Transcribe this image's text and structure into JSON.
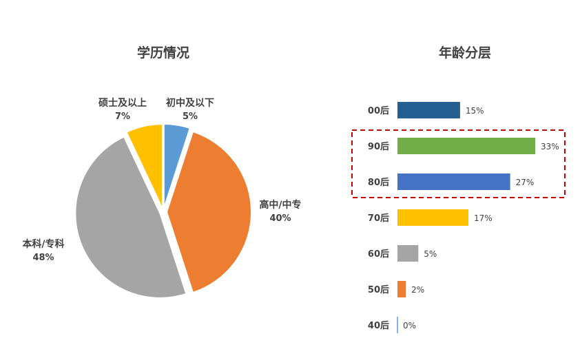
{
  "chart_data": [
    {
      "type": "pie",
      "title": "学历情况",
      "slices": [
        {
          "label": "初中及以下",
          "value": 5,
          "value_label": "5%",
          "color": "#5B9BD5"
        },
        {
          "label": "高中/中专",
          "value": 40,
          "value_label": "40%",
          "color": "#ED7D31"
        },
        {
          "label": "本科/专科",
          "value": 48,
          "value_label": "48%",
          "color": "#A5A5A5"
        },
        {
          "label": "硕士及以上",
          "value": 7,
          "value_label": "7%",
          "color": "#FFC000"
        }
      ]
    },
    {
      "type": "bar",
      "orientation": "horizontal",
      "title": "年龄分层",
      "categories": [
        "00后",
        "90后",
        "80后",
        "70后",
        "60后",
        "50后",
        "40后"
      ],
      "values": [
        15,
        33,
        27,
        17,
        5,
        2,
        0
      ],
      "value_labels": [
        "15%",
        "33%",
        "27%",
        "17%",
        "5%",
        "2%",
        "0%"
      ],
      "colors": [
        "#255E91",
        "#70AD47",
        "#4472C4",
        "#FFC000",
        "#A5A5A5",
        "#ED7D31",
        "#5B9BD5"
      ],
      "highlight": {
        "categories": [
          "90后",
          "80后"
        ],
        "style": "dashed-box",
        "color": "#C00000"
      }
    }
  ]
}
